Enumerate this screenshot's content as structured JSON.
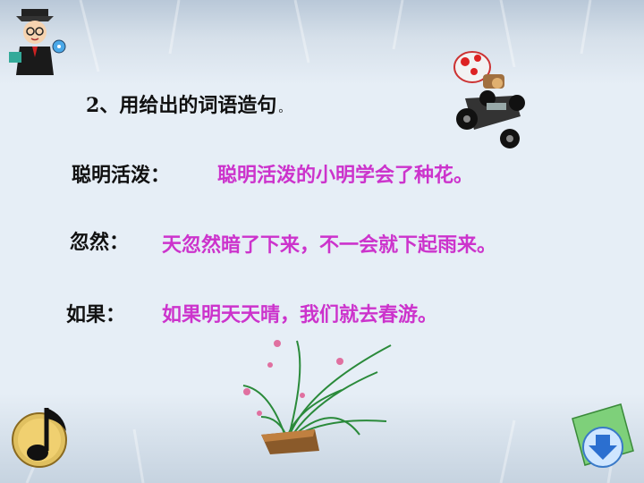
{
  "slide": {
    "heading": {
      "number": "2、",
      "text": "用给出的词语造句",
      "period": "。"
    },
    "items": [
      {
        "word": "聪明活泼：",
        "sentence": "聪明活泼的小明学会了种花。"
      },
      {
        "word": "忽然：",
        "sentence": "天忽然暗了下来，不一会就下起雨来。"
      },
      {
        "word": "如果：",
        "sentence": "如果明天天晴，我们就去春游。"
      }
    ]
  },
  "colors": {
    "sentence": "#cc33cc",
    "label": "#111111"
  },
  "icons": [
    "teacher-icon",
    "kart-mushroom-icon",
    "orchid-plant-icon",
    "music-note-icon",
    "next-page-icon"
  ]
}
